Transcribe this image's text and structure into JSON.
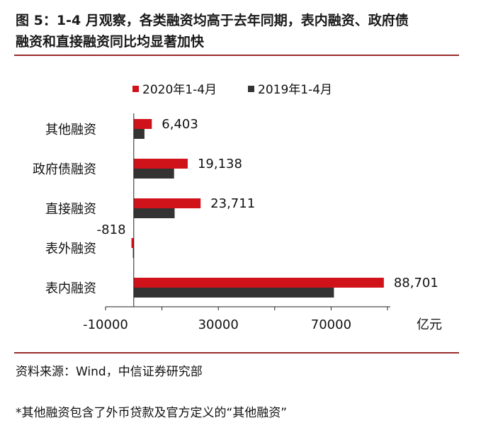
{
  "title_line1": "图 5：1-4 月观察，各类融资均高于去年同期，表内融资、政府债",
  "title_line2": "融资和直接融资同比均显著加快",
  "source": "资料来源：Wind，中信证券研究部",
  "note": "*其他融资包含了外币贷款及官方定义的“其他融资”",
  "colors": {
    "series_2020": "#d0121b",
    "series_2019": "#333333",
    "rule": "#9b2b2b"
  },
  "chart_data": {
    "type": "bar",
    "orientation": "horizontal",
    "categories": [
      "其他融资",
      "政府债融资",
      "直接融资",
      "表外融资",
      "表内融资"
    ],
    "series": [
      {
        "name": "2020年1-4月",
        "values": [
          6403,
          19138,
          23711,
          -818,
          88701
        ]
      },
      {
        "name": "2019年1-4月",
        "values": [
          3800,
          14300,
          14500,
          -300,
          71000
        ]
      }
    ],
    "data_labels": [
      "6,403",
      "19,138",
      "23,711",
      "-818",
      "88,701"
    ],
    "xticks": [
      -10000,
      30000,
      70000
    ],
    "xlim": [
      -10000,
      91000
    ],
    "xlabel": "亿元",
    "legend": "top",
    "grid": false
  }
}
